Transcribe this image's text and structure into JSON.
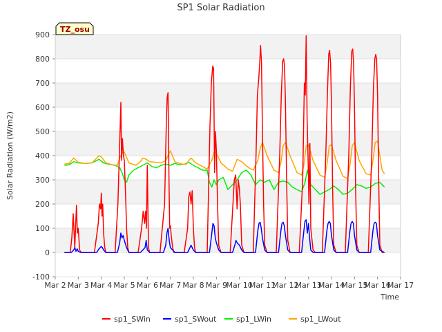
{
  "chart_data": {
    "type": "line",
    "title": "SP1 Solar Radiation",
    "xlabel": "Time",
    "ylabel": "Solar Radiation (W/m2)",
    "ylim": [
      -100,
      900
    ],
    "xlim": [
      "Mar 2",
      "Mar 17"
    ],
    "x_ticks": [
      "Mar 2",
      "Mar 3",
      "Mar 4",
      "Mar 5",
      "Mar 6",
      "Mar 7",
      "Mar 8",
      "Mar 9",
      "Mar 10",
      "Mar 11",
      "Mar 12",
      "Mar 13",
      "Mar 14",
      "Mar 15",
      "Mar 16",
      "Mar 17"
    ],
    "y_ticks": [
      "-100",
      "0",
      "100",
      "200",
      "300",
      "400",
      "500",
      "600",
      "700",
      "800",
      "900"
    ],
    "grid": true,
    "legend_position": "bottom",
    "annotation": "TZ_osu",
    "series": [
      {
        "name": "sp1_SWin",
        "color": "#ff0000",
        "x": [
          2.4,
          2.65,
          2.72,
          2.78,
          2.85,
          2.92,
          2.96,
          3.0,
          3.06,
          3.13,
          3.2,
          3.3,
          3.7,
          3.87,
          3.92,
          3.97,
          4.0,
          4.03,
          4.06,
          4.1,
          4.15,
          4.2,
          4.3,
          4.6,
          4.72,
          4.8,
          4.85,
          4.88,
          4.92,
          4.96,
          5.0,
          5.05,
          5.1,
          5.15,
          5.2,
          5.3,
          5.6,
          5.75,
          5.82,
          5.88,
          5.92,
          5.96,
          6.0,
          6.05,
          6.1,
          6.15,
          6.2,
          6.3,
          6.55,
          6.75,
          6.82,
          6.86,
          6.9,
          6.94,
          6.97,
          7.0,
          7.05,
          7.1,
          7.15,
          7.2,
          7.3,
          7.6,
          7.75,
          7.8,
          7.85,
          7.9,
          7.95,
          8.0,
          8.05,
          8.1,
          8.2,
          8.6,
          8.72,
          8.78,
          8.84,
          8.88,
          8.92,
          8.96,
          9.0,
          9.05,
          9.1,
          9.2,
          9.3,
          9.6,
          9.72,
          9.78,
          9.84,
          9.9,
          9.95,
          10.0,
          10.04,
          10.1,
          10.2,
          10.3,
          10.6,
          10.72,
          10.78,
          10.84,
          10.88,
          10.92,
          10.96,
          11.0,
          11.05,
          11.1,
          11.2,
          11.3,
          11.6,
          11.75,
          11.82,
          11.88,
          11.92,
          11.96,
          12.0,
          12.05,
          12.1,
          12.2,
          12.3,
          12.6,
          12.75,
          12.82,
          12.86,
          12.9,
          12.94,
          12.98,
          13.02,
          13.06,
          13.1,
          13.2,
          13.3,
          13.6,
          13.75,
          13.82,
          13.88,
          13.92,
          13.96,
          14.0,
          14.05,
          14.1,
          14.2,
          14.3,
          14.6,
          14.75,
          14.82,
          14.88,
          14.92,
          14.96,
          15.0,
          15.05,
          15.1,
          15.2,
          15.3,
          15.6,
          15.75,
          15.82,
          15.88,
          15.92,
          15.96,
          16.0,
          16.05,
          16.1,
          16.2,
          16.3
        ],
        "values": [
          0,
          0,
          60,
          160,
          20,
          195,
          80,
          100,
          10,
          0,
          0,
          0,
          0,
          120,
          200,
          180,
          245,
          150,
          200,
          80,
          20,
          0,
          0,
          0,
          200,
          450,
          620,
          380,
          470,
          400,
          380,
          250,
          100,
          20,
          0,
          0,
          0,
          100,
          170,
          120,
          170,
          100,
          360,
          20,
          0,
          0,
          0,
          0,
          0,
          200,
          520,
          640,
          660,
          300,
          100,
          110,
          60,
          20,
          0,
          0,
          0,
          0,
          100,
          230,
          250,
          200,
          255,
          100,
          20,
          0,
          0,
          0,
          520,
          700,
          770,
          760,
          330,
          500,
          420,
          200,
          30,
          0,
          0,
          0,
          200,
          300,
          320,
          180,
          300,
          260,
          200,
          30,
          0,
          0,
          0,
          400,
          650,
          720,
          780,
          855,
          780,
          500,
          200,
          30,
          0,
          0,
          0,
          400,
          650,
          790,
          800,
          770,
          620,
          300,
          50,
          0,
          0,
          0,
          300,
          700,
          650,
          895,
          550,
          400,
          200,
          450,
          100,
          10,
          0,
          0,
          400,
          650,
          820,
          835,
          780,
          600,
          250,
          30,
          0,
          0,
          0,
          400,
          680,
          830,
          840,
          780,
          600,
          250,
          30,
          0,
          0,
          0,
          400,
          680,
          800,
          818,
          800,
          650,
          300,
          30,
          0,
          0
        ]
      },
      {
        "name": "sp1_SWout",
        "color": "#0000ff",
        "x": [
          2.4,
          2.7,
          2.8,
          2.85,
          2.9,
          2.95,
          3.0,
          3.1,
          3.8,
          3.9,
          3.95,
          4.0,
          4.05,
          4.1,
          4.2,
          4.7,
          4.8,
          4.85,
          4.9,
          4.95,
          5.0,
          5.1,
          5.2,
          5.7,
          5.8,
          5.9,
          5.95,
          6.0,
          6.1,
          6.7,
          6.8,
          6.85,
          6.9,
          6.95,
          7.0,
          7.1,
          7.2,
          7.75,
          7.85,
          7.9,
          7.95,
          8.0,
          8.1,
          8.7,
          8.8,
          8.85,
          8.9,
          8.95,
          9.0,
          9.1,
          9.2,
          9.7,
          9.8,
          9.85,
          9.9,
          9.95,
          10.0,
          10.1,
          10.2,
          10.7,
          10.8,
          10.85,
          10.9,
          10.95,
          11.0,
          11.1,
          11.2,
          11.7,
          11.8,
          11.85,
          11.9,
          11.95,
          12.0,
          12.1,
          12.2,
          12.7,
          12.8,
          12.85,
          12.9,
          12.95,
          13.0,
          13.05,
          13.1,
          13.2,
          13.7,
          13.8,
          13.85,
          13.9,
          13.95,
          14.0,
          14.1,
          14.2,
          14.7,
          14.8,
          14.85,
          14.9,
          14.95,
          15.0,
          15.1,
          15.2,
          15.7,
          15.8,
          15.85,
          15.9,
          15.95,
          16.0,
          16.1,
          16.3
        ],
        "values": [
          0,
          0,
          10,
          20,
          5,
          15,
          5,
          0,
          0,
          15,
          20,
          25,
          20,
          10,
          0,
          0,
          40,
          80,
          60,
          70,
          50,
          20,
          0,
          0,
          10,
          20,
          50,
          10,
          0,
          0,
          30,
          80,
          100,
          50,
          20,
          10,
          0,
          0,
          20,
          30,
          20,
          10,
          0,
          0,
          80,
          120,
          110,
          60,
          40,
          10,
          0,
          0,
          30,
          50,
          40,
          35,
          30,
          10,
          0,
          0,
          90,
          120,
          125,
          100,
          60,
          10,
          0,
          0,
          90,
          120,
          125,
          110,
          70,
          10,
          0,
          0,
          90,
          130,
          135,
          80,
          120,
          60,
          10,
          0,
          0,
          90,
          120,
          128,
          120,
          70,
          10,
          0,
          0,
          90,
          120,
          128,
          120,
          70,
          10,
          0,
          0,
          90,
          120,
          125,
          120,
          70,
          10,
          0
        ]
      },
      {
        "name": "sp1_LWin",
        "color": "#00ee00",
        "x": [
          2.4,
          2.6,
          2.8,
          3.0,
          3.3,
          3.6,
          3.9,
          4.1,
          4.3,
          4.6,
          4.8,
          4.9,
          5.0,
          5.1,
          5.2,
          5.4,
          5.6,
          5.8,
          6.0,
          6.2,
          6.4,
          6.6,
          6.8,
          7.0,
          7.2,
          7.4,
          7.6,
          7.8,
          8.0,
          8.2,
          8.4,
          8.6,
          8.7,
          8.8,
          8.9,
          9.0,
          9.1,
          9.3,
          9.5,
          9.7,
          9.9,
          10.1,
          10.3,
          10.5,
          10.7,
          10.9,
          11.1,
          11.3,
          11.5,
          11.7,
          11.9,
          12.1,
          12.3,
          12.5,
          12.7,
          12.85,
          12.95,
          13.1,
          13.3,
          13.5,
          13.7,
          13.9,
          14.1,
          14.3,
          14.5,
          14.7,
          14.9,
          15.1,
          15.3,
          15.5,
          15.7,
          15.9,
          16.1,
          16.3
        ],
        "values": [
          360,
          362,
          375,
          370,
          368,
          370,
          385,
          370,
          365,
          360,
          350,
          330,
          300,
          290,
          320,
          340,
          350,
          360,
          370,
          355,
          350,
          360,
          365,
          360,
          368,
          362,
          365,
          372,
          360,
          350,
          340,
          340,
          290,
          270,
          300,
          280,
          300,
          310,
          260,
          280,
          300,
          330,
          340,
          320,
          280,
          300,
          290,
          300,
          260,
          290,
          295,
          290,
          270,
          260,
          250,
          290,
          340,
          280,
          260,
          240,
          250,
          260,
          275,
          260,
          240,
          245,
          260,
          280,
          275,
          265,
          270,
          285,
          290,
          270
        ]
      },
      {
        "name": "sp1_LWout",
        "color": "#ffa500",
        "x": [
          2.4,
          2.6,
          2.8,
          3.0,
          3.3,
          3.6,
          3.8,
          3.9,
          4.0,
          4.2,
          4.5,
          4.7,
          4.8,
          4.9,
          5.0,
          5.2,
          5.5,
          5.7,
          5.8,
          5.95,
          6.1,
          6.4,
          6.6,
          6.8,
          6.9,
          7.0,
          7.2,
          7.5,
          7.7,
          7.8,
          7.9,
          8.1,
          8.4,
          8.6,
          8.8,
          8.9,
          9.0,
          9.2,
          9.5,
          9.7,
          9.8,
          9.9,
          10.1,
          10.4,
          10.6,
          10.8,
          10.9,
          11.0,
          11.2,
          11.5,
          11.7,
          11.8,
          11.9,
          12.0,
          12.2,
          12.5,
          12.7,
          12.8,
          12.9,
          13.0,
          13.2,
          13.5,
          13.7,
          13.8,
          13.9,
          14.0,
          14.2,
          14.5,
          14.7,
          14.8,
          14.9,
          15.0,
          15.2,
          15.5,
          15.7,
          15.8,
          15.9,
          16.0,
          16.2,
          16.3
        ],
        "values": [
          365,
          368,
          390,
          372,
          368,
          370,
          390,
          400,
          395,
          370,
          362,
          360,
          390,
          410,
          415,
          370,
          360,
          375,
          390,
          385,
          375,
          372,
          370,
          380,
          400,
          420,
          375,
          365,
          365,
          380,
          390,
          370,
          355,
          345,
          380,
          415,
          410,
          370,
          345,
          335,
          360,
          385,
          375,
          350,
          340,
          380,
          430,
          455,
          400,
          340,
          330,
          370,
          440,
          455,
          400,
          330,
          320,
          360,
          440,
          445,
          380,
          320,
          310,
          360,
          440,
          445,
          380,
          315,
          305,
          360,
          440,
          455,
          380,
          325,
          320,
          380,
          455,
          460,
          340,
          325
        ]
      }
    ]
  }
}
